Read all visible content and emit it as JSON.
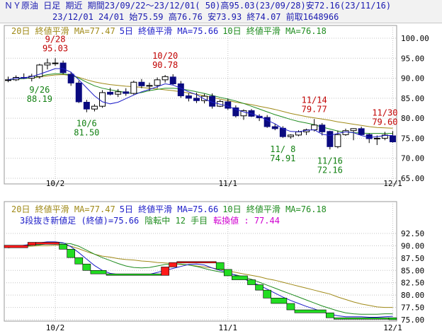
{
  "header": {
    "line1": "ＮＹ原油 日足 期近 期間23/09/22～23/12/01( 50)高95.03(23/09/28)安72.16(23/11/16)",
    "line2": "23/12/01 24/01 始75.59 高76.76 安73.93 終74.07 前取1648966"
  },
  "colors": {
    "ma20": "#a08a18",
    "ma5": "#1c1cc8",
    "ma10": "#1f8c1f",
    "up": "#ffffff",
    "down": "#0a0a80",
    "high_label": "#c00000",
    "low_label": "#128012",
    "brick_up": "#ff1a1a",
    "brick_down": "#22dd22",
    "brick_outline": "#000000",
    "info_blue": "#1c1cc8",
    "info_green": "#1f8c1f",
    "info_magenta": "#d000d0"
  },
  "chart_data": [
    {
      "type": "candlestick",
      "legend": [
        {
          "text": "20日 終値平滑 MA=77.47",
          "color_key": "ma20"
        },
        {
          "text": "5日 終値平滑 MA=75.66",
          "color_key": "ma5"
        },
        {
          "text": "10日 終値平滑 MA=76.18",
          "color_key": "ma10"
        }
      ],
      "ylim": [
        65,
        100
      ],
      "y_ticks": [
        65,
        70,
        75,
        80,
        85,
        90,
        95,
        100
      ],
      "y_tick_labels": [
        "65.00",
        "70.00",
        "75.00",
        "80.00",
        "85.00",
        "90.00",
        "95.00",
        "100.00"
      ],
      "x_ticks": [
        {
          "label": "10/2",
          "index": 6
        },
        {
          "label": "11/1",
          "index": 28
        },
        {
          "label": "12/1",
          "index": 49
        }
      ],
      "candles": [
        [
          89.6,
          90.4,
          89.0,
          89.6
        ],
        [
          89.6,
          90.7,
          89.3,
          90.2
        ],
        [
          90.2,
          91.2,
          89.8,
          90.0
        ],
        [
          90.0,
          91.1,
          89.2,
          90.5
        ],
        [
          90.4,
          93.6,
          89.9,
          93.3
        ],
        [
          93.3,
          94.9,
          92.2,
          93.8
        ],
        [
          93.7,
          95.0,
          93.1,
          93.8
        ],
        [
          93.8,
          94.4,
          91.0,
          91.4
        ],
        [
          91.0,
          91.6,
          88.1,
          88.8
        ],
        [
          88.8,
          89.4,
          83.8,
          84.1
        ],
        [
          84.0,
          84.6,
          81.5,
          82.3
        ],
        [
          82.3,
          83.5,
          81.7,
          83.0
        ],
        [
          83.0,
          87.0,
          82.6,
          86.4
        ],
        [
          86.5,
          87.6,
          85.7,
          86.0
        ],
        [
          86.0,
          87.3,
          85.3,
          86.6
        ],
        [
          86.6,
          87.5,
          85.6,
          86.2
        ],
        [
          86.2,
          89.4,
          85.9,
          89.0
        ],
        [
          89.0,
          89.8,
          87.5,
          88.1
        ],
        [
          88.0,
          88.9,
          86.8,
          88.2
        ],
        [
          88.2,
          90.2,
          87.5,
          89.6
        ],
        [
          89.6,
          90.8,
          88.9,
          90.4
        ],
        [
          90.3,
          91.0,
          88.3,
          88.6
        ],
        [
          88.6,
          89.3,
          85.1,
          85.6
        ],
        [
          85.6,
          86.2,
          84.2,
          85.0
        ],
        [
          85.0,
          86.4,
          83.8,
          84.4
        ],
        [
          84.4,
          86.1,
          83.7,
          85.5
        ],
        [
          85.5,
          86.2,
          82.4,
          83.0
        ],
        [
          83.0,
          84.6,
          82.8,
          84.2
        ],
        [
          84.1,
          84.9,
          82.1,
          82.5
        ],
        [
          82.6,
          83.2,
          80.2,
          80.6
        ],
        [
          80.6,
          82.2,
          79.6,
          81.9
        ],
        [
          81.9,
          82.3,
          80.3,
          80.5
        ],
        [
          80.5,
          81.0,
          79.3,
          80.1
        ],
        [
          80.2,
          80.8,
          77.6,
          77.9
        ],
        [
          77.9,
          78.6,
          77.0,
          77.4
        ],
        [
          77.5,
          78.0,
          75.1,
          75.4
        ],
        [
          75.4,
          76.0,
          74.9,
          75.8
        ],
        [
          75.8,
          77.0,
          75.5,
          76.6
        ],
        [
          76.6,
          77.4,
          75.8,
          77.1
        ],
        [
          77.1,
          79.8,
          76.7,
          78.3
        ],
        [
          78.3,
          78.8,
          75.7,
          76.6
        ],
        [
          76.7,
          76.9,
          72.2,
          72.9
        ],
        [
          72.9,
          76.9,
          72.5,
          75.9
        ],
        [
          75.9,
          77.4,
          75.6,
          76.9
        ],
        [
          76.9,
          77.5,
          74.5,
          77.4
        ],
        [
          77.4,
          77.9,
          75.8,
          75.9
        ],
        [
          75.9,
          76.2,
          73.8,
          74.9
        ],
        [
          74.9,
          75.7,
          73.3,
          75.0
        ],
        [
          75.0,
          76.6,
          74.5,
          75.8
        ],
        [
          75.6,
          76.8,
          73.9,
          74.1
        ]
      ],
      "ma20": [
        89.6,
        89.9,
        90.0,
        90.1,
        90.3,
        90.6,
        90.8,
        90.9,
        90.7,
        90.2,
        89.6,
        89.1,
        88.7,
        88.4,
        88.2,
        88.0,
        87.9,
        87.7,
        87.5,
        87.3,
        87.1,
        86.9,
        86.6,
        86.3,
        86.0,
        85.6,
        85.2,
        84.8,
        84.4,
        84.0,
        83.7,
        83.4,
        83.0,
        82.6,
        82.2,
        81.7,
        81.2,
        80.8,
        80.4,
        80.1,
        79.8,
        79.5,
        79.1,
        78.8,
        78.5,
        78.2,
        77.9,
        77.7,
        77.6,
        77.5
      ],
      "ma10": [
        89.6,
        89.8,
        89.9,
        90.1,
        90.5,
        90.9,
        91.1,
        91.1,
        90.8,
        90.0,
        89.0,
        88.1,
        87.5,
        87.1,
        86.8,
        86.4,
        86.2,
        86.4,
        86.9,
        87.2,
        87.5,
        87.5,
        87.3,
        87.0,
        86.6,
        86.2,
        85.7,
        85.2,
        84.8,
        84.3,
        83.7,
        83.0,
        82.3,
        81.6,
        80.9,
        80.3,
        79.7,
        79.2,
        78.8,
        78.4,
        77.8,
        77.3,
        76.8,
        76.5,
        76.4,
        76.3,
        76.2,
        76.2,
        76.2,
        76.2
      ],
      "ma5": [
        89.6,
        90.0,
        90.1,
        90.4,
        91.0,
        91.7,
        92.4,
        92.4,
        91.5,
        89.6,
        87.6,
        85.6,
        84.1,
        83.6,
        84.0,
        84.9,
        85.8,
        86.6,
        87.2,
        87.9,
        88.6,
        88.3,
        87.5,
        86.6,
        85.9,
        84.8,
        84.0,
        83.5,
        83.0,
        82.2,
        81.6,
        81.1,
        80.5,
        79.5,
        78.6,
        77.4,
        76.7,
        76.6,
        77.0,
        77.1,
        76.0,
        75.7,
        76.2,
        76.6,
        76.4,
        75.7,
        75.2,
        75.4,
        75.7,
        75.7
      ],
      "annotations": [
        {
          "date": "9/28",
          "value": "95.03",
          "kind": "high",
          "index": 6
        },
        {
          "date": "9/26",
          "value": "88.19",
          "kind": "low",
          "index": 4
        },
        {
          "date": "10/6",
          "value": "81.50",
          "kind": "low",
          "index": 10
        },
        {
          "date": "10/20",
          "value": "90.78",
          "kind": "high",
          "index": 20
        },
        {
          "date": "11/ 8",
          "value": "74.91",
          "kind": "low",
          "index": 35
        },
        {
          "date": "11/14",
          "value": "79.77",
          "kind": "high",
          "index": 39
        },
        {
          "date": "11/16",
          "value": "72.16",
          "kind": "low",
          "index": 41
        },
        {
          "date": "11/30",
          "value": "79.60",
          "kind": "high",
          "index": 48
        }
      ]
    },
    {
      "type": "three_line_break",
      "legend": [
        {
          "text": "20日 終値平滑 MA=77.47",
          "color_key": "ma20"
        },
        {
          "text": "5日 終値平滑 MA=75.66",
          "color_key": "ma5"
        },
        {
          "text": "10日 終値平滑 MA=76.18",
          "color_key": "ma10"
        }
      ],
      "info": {
        "prefix": "3段抜き新値足 (終値)=75.66",
        "status": "陰転中 12 手目",
        "reversal": "転換値 : 77.44"
      },
      "ylim": [
        75,
        92.5
      ],
      "y_ticks": [
        75,
        77.5,
        80,
        82.5,
        85,
        87.5,
        90,
        92.5
      ],
      "y_tick_labels": [
        "75.00",
        "77.50",
        "80.00",
        "82.50",
        "85.00",
        "87.50",
        "90.00",
        "92.50"
      ],
      "x_ticks": [
        {
          "label": "10/2",
          "index": 6
        },
        {
          "label": "11/1",
          "index": 28
        },
        {
          "label": "12/1",
          "index": 49
        }
      ],
      "bricks": [
        {
          "from": 0,
          "to": 2,
          "low": 89.6,
          "high": 90.1,
          "dir": "up"
        },
        {
          "from": 3,
          "to": 3,
          "low": 90.1,
          "high": 90.7,
          "dir": "up"
        },
        {
          "from": 4,
          "to": 6,
          "low": 90.3,
          "high": 90.7,
          "dir": "up"
        },
        {
          "from": 7,
          "to": 7,
          "low": 89.3,
          "high": 90.3,
          "dir": "down"
        },
        {
          "from": 8,
          "to": 8,
          "low": 87.6,
          "high": 89.3,
          "dir": "down"
        },
        {
          "from": 9,
          "to": 9,
          "low": 86.3,
          "high": 87.6,
          "dir": "down"
        },
        {
          "from": 10,
          "to": 10,
          "low": 85.0,
          "high": 86.3,
          "dir": "down"
        },
        {
          "from": 11,
          "to": 12,
          "low": 84.3,
          "high": 85.0,
          "dir": "down"
        },
        {
          "from": 13,
          "to": 19,
          "low": 84.0,
          "high": 84.3,
          "dir": "down"
        },
        {
          "from": 20,
          "to": 20,
          "low": 84.0,
          "high": 85.7,
          "dir": "up"
        },
        {
          "from": 21,
          "to": 21,
          "low": 85.7,
          "high": 86.6,
          "dir": "up"
        },
        {
          "from": 22,
          "to": 26,
          "low": 86.6,
          "high": 86.8,
          "dir": "up"
        },
        {
          "from": 27,
          "to": 27,
          "low": 85.2,
          "high": 86.6,
          "dir": "down"
        },
        {
          "from": 28,
          "to": 28,
          "low": 83.9,
          "high": 85.2,
          "dir": "down"
        },
        {
          "from": 29,
          "to": 30,
          "low": 83.1,
          "high": 83.9,
          "dir": "down"
        },
        {
          "from": 31,
          "to": 31,
          "low": 82.1,
          "high": 83.1,
          "dir": "down"
        },
        {
          "from": 32,
          "to": 32,
          "low": 81.0,
          "high": 82.1,
          "dir": "down"
        },
        {
          "from": 33,
          "to": 33,
          "low": 79.4,
          "high": 81.0,
          "dir": "down"
        },
        {
          "from": 34,
          "to": 35,
          "low": 78.3,
          "high": 79.4,
          "dir": "down"
        },
        {
          "from": 36,
          "to": 36,
          "low": 77.0,
          "high": 78.3,
          "dir": "down"
        },
        {
          "from": 37,
          "to": 40,
          "low": 76.4,
          "high": 77.0,
          "dir": "down"
        },
        {
          "from": 41,
          "to": 41,
          "low": 75.4,
          "high": 76.4,
          "dir": "down"
        },
        {
          "from": 42,
          "to": 48,
          "low": 75.1,
          "high": 75.4,
          "dir": "down"
        },
        {
          "from": 49,
          "to": 49,
          "low": 75.0,
          "high": 75.4,
          "dir": "down"
        }
      ],
      "ma20": [
        89.6,
        89.7,
        89.9,
        89.9,
        90.0,
        90.0,
        90.1,
        90.1,
        89.9,
        89.4,
        88.8,
        88.3,
        87.9,
        87.7,
        87.4,
        87.2,
        87.1,
        86.9,
        86.8,
        86.6,
        86.5,
        86.4,
        86.2,
        86.1,
        85.9,
        85.7,
        85.5,
        85.2,
        84.9,
        84.6,
        84.3,
        84.0,
        83.7,
        83.3,
        83.0,
        82.6,
        82.2,
        81.8,
        81.4,
        81.0,
        80.6,
        80.2,
        79.6,
        79.1,
        78.6,
        78.2,
        77.9,
        77.6,
        77.5,
        77.5
      ],
      "ma10": [
        89.6,
        89.8,
        89.9,
        90.1,
        90.2,
        90.4,
        90.5,
        90.5,
        90.4,
        89.9,
        89.1,
        88.3,
        87.6,
        87.0,
        86.4,
        85.9,
        85.6,
        85.5,
        85.6,
        85.9,
        86.2,
        86.3,
        86.3,
        86.1,
        85.8,
        85.4,
        85.0,
        84.7,
        84.4,
        84.1,
        83.7,
        83.2,
        82.6,
        82.0,
        81.4,
        80.8,
        80.2,
        79.6,
        79.0,
        78.4,
        77.8,
        77.3,
        76.8,
        76.4,
        76.2,
        76.1,
        76.1,
        76.1,
        76.2,
        76.2
      ],
      "ma5": [
        89.6,
        89.9,
        90.1,
        90.3,
        90.6,
        90.8,
        90.8,
        90.6,
        89.8,
        88.6,
        87.3,
        86.0,
        85.0,
        84.4,
        84.2,
        84.1,
        84.1,
        84.1,
        84.2,
        84.6,
        85.0,
        85.4,
        85.8,
        86.2,
        86.3,
        86.1,
        85.5,
        85.0,
        84.6,
        84.0,
        83.3,
        82.6,
        82.0,
        81.2,
        80.4,
        79.6,
        78.9,
        78.3,
        77.7,
        77.2,
        76.6,
        76.1,
        75.8,
        75.6,
        75.6,
        75.6,
        75.5,
        75.5,
        75.6,
        75.7
      ]
    }
  ]
}
